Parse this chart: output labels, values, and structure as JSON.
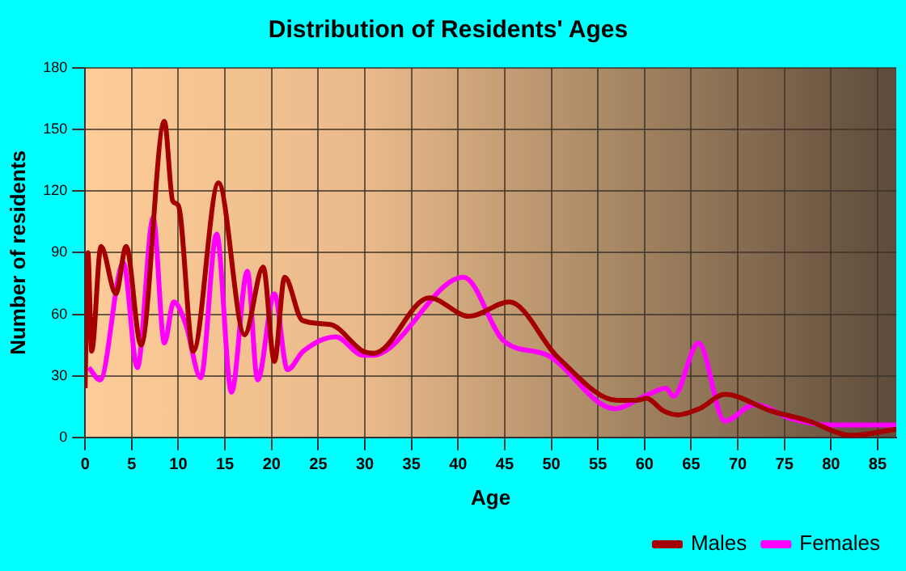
{
  "chart_data": {
    "type": "line",
    "title": "Distribution of Residents' Ages",
    "xlabel": "Age",
    "ylabel": "Number of residents",
    "xlim": [
      0,
      87
    ],
    "xticks": [
      0,
      5,
      10,
      15,
      20,
      25,
      30,
      35,
      40,
      45,
      50,
      55,
      60,
      65,
      70,
      75,
      80,
      85
    ],
    "ylim": [
      0,
      180
    ],
    "yticks": [
      0,
      30,
      60,
      90,
      120,
      150,
      180
    ],
    "grid": true,
    "legend": "bottom right",
    "marker": "none",
    "line_style": "solid",
    "series": [
      {
        "name": "Males",
        "color": "#a50000",
        "x": [
          0,
          0.3,
          0.7,
          1.7,
          3.3,
          4.4,
          6,
          8.5,
          9.4,
          10,
          11.6,
          14.3,
          17.1,
          19.1,
          20.3,
          21.4,
          23.3,
          26.3,
          29.8,
          31,
          36.9,
          41.2,
          45.5,
          50.7,
          57.1,
          59.1,
          60.2,
          62,
          63.6,
          65.9,
          68.6,
          73.5,
          77.6,
          82.2,
          87
        ],
        "values": [
          24,
          90,
          42,
          93,
          70,
          93,
          45,
          154,
          115,
          113,
          42,
          124,
          50,
          83,
          37,
          78,
          57,
          55,
          42,
          41,
          68,
          59,
          66,
          39,
          18,
          18,
          19,
          13,
          11,
          14,
          21,
          13,
          8,
          1,
          4
        ]
      },
      {
        "name": "Females",
        "color": "#ff00ff",
        "x": [
          0.4,
          1.6,
          4.1,
          5.6,
          7.3,
          8.5,
          9.5,
          10.8,
          12.4,
          14.1,
          15.7,
          17.4,
          18.5,
          20.3,
          21.7,
          23.4,
          26.9,
          29.8,
          30.8,
          40.6,
          44.9,
          49.6,
          56.8,
          60,
          62.3,
          63.1,
          65.8,
          68.6,
          71.8,
          75.8,
          79.9,
          87
        ],
        "values": [
          34,
          28,
          85,
          34,
          107,
          46,
          66,
          55,
          29,
          99,
          22,
          81,
          28,
          70,
          33,
          42,
          49,
          40,
          40,
          78,
          47,
          40,
          14,
          20,
          24,
          20,
          46,
          8,
          16,
          9,
          6,
          6
        ]
      }
    ]
  }
}
